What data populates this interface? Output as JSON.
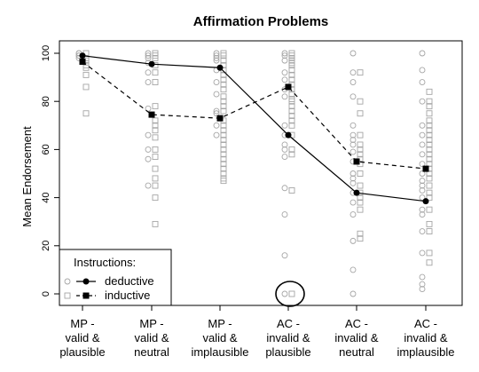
{
  "chart_data": {
    "type": "line",
    "title": "Affirmation Problems",
    "xlabel": "",
    "ylabel": "Mean Endorsement",
    "ylim": [
      0,
      100
    ],
    "y_ticks": [
      0,
      20,
      40,
      60,
      80,
      100
    ],
    "categories": [
      [
        "MP -",
        "valid &",
        "plausible"
      ],
      [
        "MP -",
        "valid &",
        "neutral"
      ],
      [
        "MP -",
        "valid &",
        "implausible"
      ],
      [
        "AC -",
        "invalid &",
        "plausible"
      ],
      [
        "AC -",
        "invalid &",
        "neutral"
      ],
      [
        "AC -",
        "invalid &",
        "implausible"
      ]
    ],
    "legend": {
      "title": "Instructions:",
      "position": "bottom-left"
    },
    "series": [
      {
        "name": "deductive",
        "marker": "filled-circle",
        "line": "solid",
        "values": [
          99,
          95.5,
          94,
          66,
          42,
          38.5
        ],
        "individual": [
          [
            100,
            99,
            98,
            99,
            100
          ],
          [
            100,
            99,
            98,
            96,
            92,
            88,
            77,
            66,
            60,
            56,
            45
          ],
          [
            100,
            99,
            98,
            97,
            93,
            88,
            83,
            76,
            75,
            70,
            66
          ],
          [
            100,
            99,
            97,
            92,
            89,
            85,
            82,
            70,
            66,
            62,
            60,
            57,
            44,
            33,
            16,
            0
          ],
          [
            100,
            92,
            88,
            82,
            70,
            66,
            64,
            62,
            59,
            55,
            50,
            48,
            46,
            42,
            38,
            33,
            22,
            10,
            0
          ],
          [
            100,
            93,
            88,
            80,
            70,
            66,
            62,
            58,
            54,
            50,
            47,
            45,
            43,
            40,
            35,
            33,
            26,
            17,
            7,
            4,
            2
          ]
        ]
      },
      {
        "name": "inductive",
        "marker": "filled-square",
        "line": "dashed",
        "values": [
          96.5,
          74.5,
          73,
          86,
          55,
          52
        ],
        "individual": [
          [
            100,
            98,
            97,
            95,
            94,
            91,
            86,
            75
          ],
          [
            100,
            99,
            98,
            95,
            92,
            88,
            78,
            72,
            70,
            68,
            65,
            60,
            57,
            52,
            48,
            45,
            40,
            29
          ],
          [
            100,
            99,
            97,
            95,
            93,
            91,
            89,
            87,
            85,
            82,
            80,
            78,
            76,
            72,
            70,
            68,
            66,
            64,
            62,
            60,
            58,
            56,
            54,
            52,
            50,
            48,
            47
          ],
          [
            100,
            99,
            98,
            97,
            96,
            95,
            93,
            91,
            89,
            87,
            85,
            83,
            81,
            80,
            78,
            76,
            74,
            72,
            70,
            66,
            60,
            58,
            43,
            0
          ],
          [
            92,
            80,
            75,
            66,
            62,
            60,
            58,
            56,
            54,
            50,
            45,
            42,
            40,
            38,
            35,
            25,
            23
          ],
          [
            84,
            80,
            78,
            75,
            72,
            70,
            68,
            66,
            64,
            62,
            60,
            58,
            56,
            54,
            52,
            50,
            48,
            45,
            42,
            40,
            35,
            29,
            26,
            17,
            13
          ]
        ]
      }
    ],
    "annotation": {
      "type": "circle",
      "category_index": 3,
      "y": 0
    },
    "grid": false
  }
}
